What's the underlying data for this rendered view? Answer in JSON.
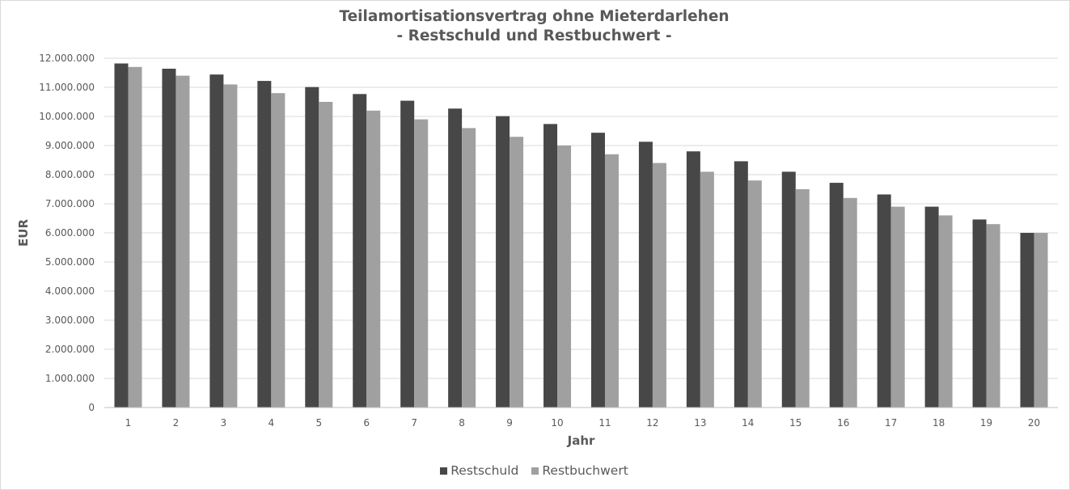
{
  "chart_data": {
    "type": "bar",
    "title": "Teilamortisationsvertrag ohne Mieterdarlehen",
    "subtitle": "- Restschuld und Restbuchwert -",
    "xlabel": "Jahr",
    "ylabel": "EUR",
    "ylim": [
      0,
      12000000
    ],
    "ytick_step": 1000000,
    "ytick_labels": [
      "0",
      "1.000.000",
      "2.000.000",
      "3.000.000",
      "4.000.000",
      "5.000.000",
      "6.000.000",
      "7.000.000",
      "8.000.000",
      "9.000.000",
      "10.000.000",
      "11.000.000",
      "12.000.000"
    ],
    "grid": true,
    "legend_position": "bottom",
    "categories": [
      "1",
      "2",
      "3",
      "4",
      "5",
      "6",
      "7",
      "8",
      "9",
      "10",
      "11",
      "12",
      "13",
      "14",
      "15",
      "16",
      "17",
      "18",
      "19",
      "20"
    ],
    "series": [
      {
        "name": "Restschuld",
        "color": "#474747",
        "values": [
          11820000,
          11640000,
          11440000,
          11220000,
          11010000,
          10770000,
          10540000,
          10270000,
          10010000,
          9740000,
          9440000,
          9130000,
          8800000,
          8460000,
          8100000,
          7720000,
          7320000,
          6900000,
          6460000,
          6000000
        ]
      },
      {
        "name": "Restbuchwert",
        "color": "#a0a0a0",
        "values": [
          11700000,
          11400000,
          11100000,
          10800000,
          10500000,
          10200000,
          9900000,
          9600000,
          9300000,
          9000000,
          8700000,
          8400000,
          8100000,
          7800000,
          7500000,
          7200000,
          6900000,
          6600000,
          6300000,
          6000000
        ]
      }
    ]
  }
}
